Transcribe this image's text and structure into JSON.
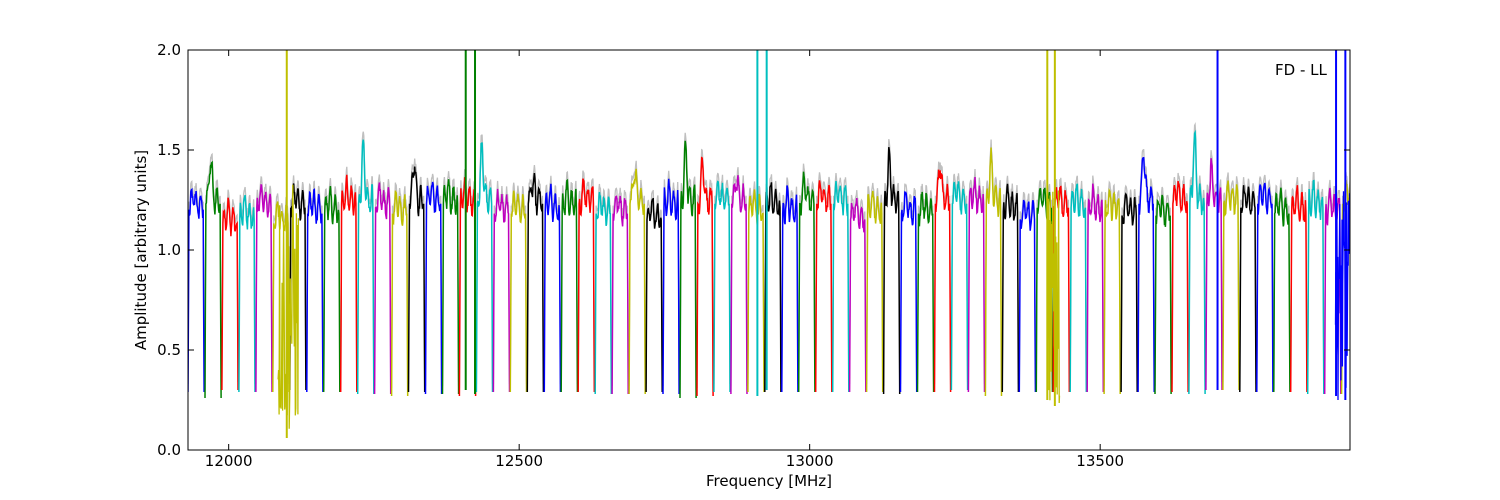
{
  "chart_data": {
    "type": "line",
    "title": "",
    "xlabel": "Frequency [MHz]",
    "ylabel": "Amplitude [arbitrary units]",
    "xlim": [
      11930,
      13930
    ],
    "ylim": [
      0.0,
      2.0
    ],
    "x_ticks": [
      12000,
      12500,
      13000,
      13500
    ],
    "y_ticks": [
      0.0,
      0.5,
      1.0,
      1.5,
      2.0
    ],
    "x_tick_labels": [
      "12000",
      "12500",
      "13000",
      "13500"
    ],
    "y_tick_labels": [
      "0.0",
      "0.5",
      "1.0",
      "1.5",
      "2.0"
    ],
    "grid": false,
    "annotation": "FD - LL",
    "background_series_color": "#bfbfbf",
    "colors": [
      "#0000ff",
      "#008000",
      "#ff0000",
      "#00bfbf",
      "#bf00bf",
      "#bfbf00",
      "#000000"
    ],
    "channel_start_mhz": 11930,
    "channel_spacing_mhz": 29.2,
    "channel_count": 69,
    "channel_color_index": [
      0,
      1,
      2,
      3,
      4,
      5,
      6,
      0,
      1,
      2,
      3,
      4,
      5,
      6,
      0,
      1,
      2,
      3,
      4,
      5,
      6,
      0,
      1,
      2,
      3,
      4,
      5,
      6,
      0,
      1,
      2,
      3,
      4,
      5,
      6,
      0,
      1,
      2,
      3,
      4,
      5,
      6,
      0,
      1,
      2,
      3,
      4,
      5,
      6,
      0,
      1,
      2,
      3,
      4,
      5,
      6,
      0,
      1,
      2,
      3,
      4,
      5,
      6,
      0,
      1,
      2,
      3,
      4,
      5
    ],
    "channel_peak": [
      1.27,
      1.45,
      1.2,
      1.22,
      1.28,
      1.2,
      1.28,
      1.25,
      1.25,
      1.3,
      1.5,
      1.28,
      1.25,
      1.45,
      1.3,
      1.3,
      1.3,
      1.52,
      1.25,
      1.25,
      1.34,
      1.26,
      1.28,
      1.3,
      1.25,
      1.25,
      1.4,
      1.22,
      1.28,
      1.49,
      1.44,
      1.3,
      1.35,
      1.25,
      1.28,
      1.25,
      1.35,
      1.3,
      1.3,
      1.22,
      1.25,
      1.45,
      1.25,
      1.25,
      1.43,
      1.31,
      1.3,
      1.44,
      1.26,
      1.22,
      1.28,
      1.28,
      1.28,
      1.26,
      1.26,
      1.24,
      1.5,
      1.24,
      1.3,
      1.56,
      1.4,
      1.3,
      1.28,
      1.3,
      1.25,
      1.26,
      1.28,
      1.25,
      1.3
    ],
    "channel_floor": [
      0.29,
      0.26,
      0.3,
      0.29,
      0.29,
      0.29,
      0.3,
      0.29,
      0.29,
      0.29,
      0.28,
      0.28,
      0.27,
      0.29,
      0.28,
      0.28,
      0.27,
      0.29,
      0.29,
      0.29,
      0.29,
      0.29,
      0.29,
      0.29,
      0.28,
      0.28,
      0.28,
      0.29,
      0.28,
      0.26,
      0.27,
      0.29,
      0.28,
      0.29,
      0.29,
      0.29,
      0.29,
      0.29,
      0.29,
      0.29,
      0.29,
      0.28,
      0.29,
      0.29,
      0.29,
      0.3,
      0.29,
      0.27,
      0.29,
      0.29,
      0.29,
      0.29,
      0.29,
      0.29,
      0.28,
      0.29,
      0.29,
      0.28,
      0.29,
      0.28,
      0.3,
      0.3,
      0.29,
      0.29,
      0.29,
      0.29,
      0.28,
      0.28,
      0.28
    ],
    "spikes": [
      {
        "x": 12100,
        "y_top": 2.0,
        "y_bottom": 0.06,
        "color": "#bfbf00"
      },
      {
        "x": 12408,
        "y_top": 2.0,
        "y_bottom": 0.3,
        "color": "#008000"
      },
      {
        "x": 12424,
        "y_top": 2.0,
        "y_bottom": 0.28,
        "color": "#008000"
      },
      {
        "x": 12910,
        "y_top": 2.0,
        "y_bottom": 0.27,
        "color": "#00bfbf"
      },
      {
        "x": 12926,
        "y_top": 2.0,
        "y_bottom": 0.3,
        "color": "#00bfbf"
      },
      {
        "x": 13409,
        "y_top": 2.0,
        "y_bottom": 0.25,
        "color": "#bfbf00"
      },
      {
        "x": 13422,
        "y_top": 2.0,
        "y_bottom": 0.22,
        "color": "#bfbf00"
      },
      {
        "x": 13702,
        "y_top": 2.0,
        "y_bottom": 0.3,
        "color": "#0000ff"
      },
      {
        "x": 13906,
        "y_top": 2.0,
        "y_bottom": 0.27,
        "color": "#0000ff"
      },
      {
        "x": 13922,
        "y_top": 2.0,
        "y_bottom": 0.25,
        "color": "#0000ff"
      }
    ],
    "noise_regions": [
      {
        "x_start": 12085,
        "x_end": 12120,
        "y_min": 0.06,
        "y_max": 1.35,
        "color": "#bfbf00"
      },
      {
        "x_start": 13410,
        "x_end": 13430,
        "y_min": 0.22,
        "y_max": 1.3,
        "color": "#bfbf00"
      },
      {
        "x_start": 13905,
        "x_end": 13930,
        "y_min": 0.25,
        "y_max": 1.3,
        "color": "#0000ff"
      }
    ]
  }
}
